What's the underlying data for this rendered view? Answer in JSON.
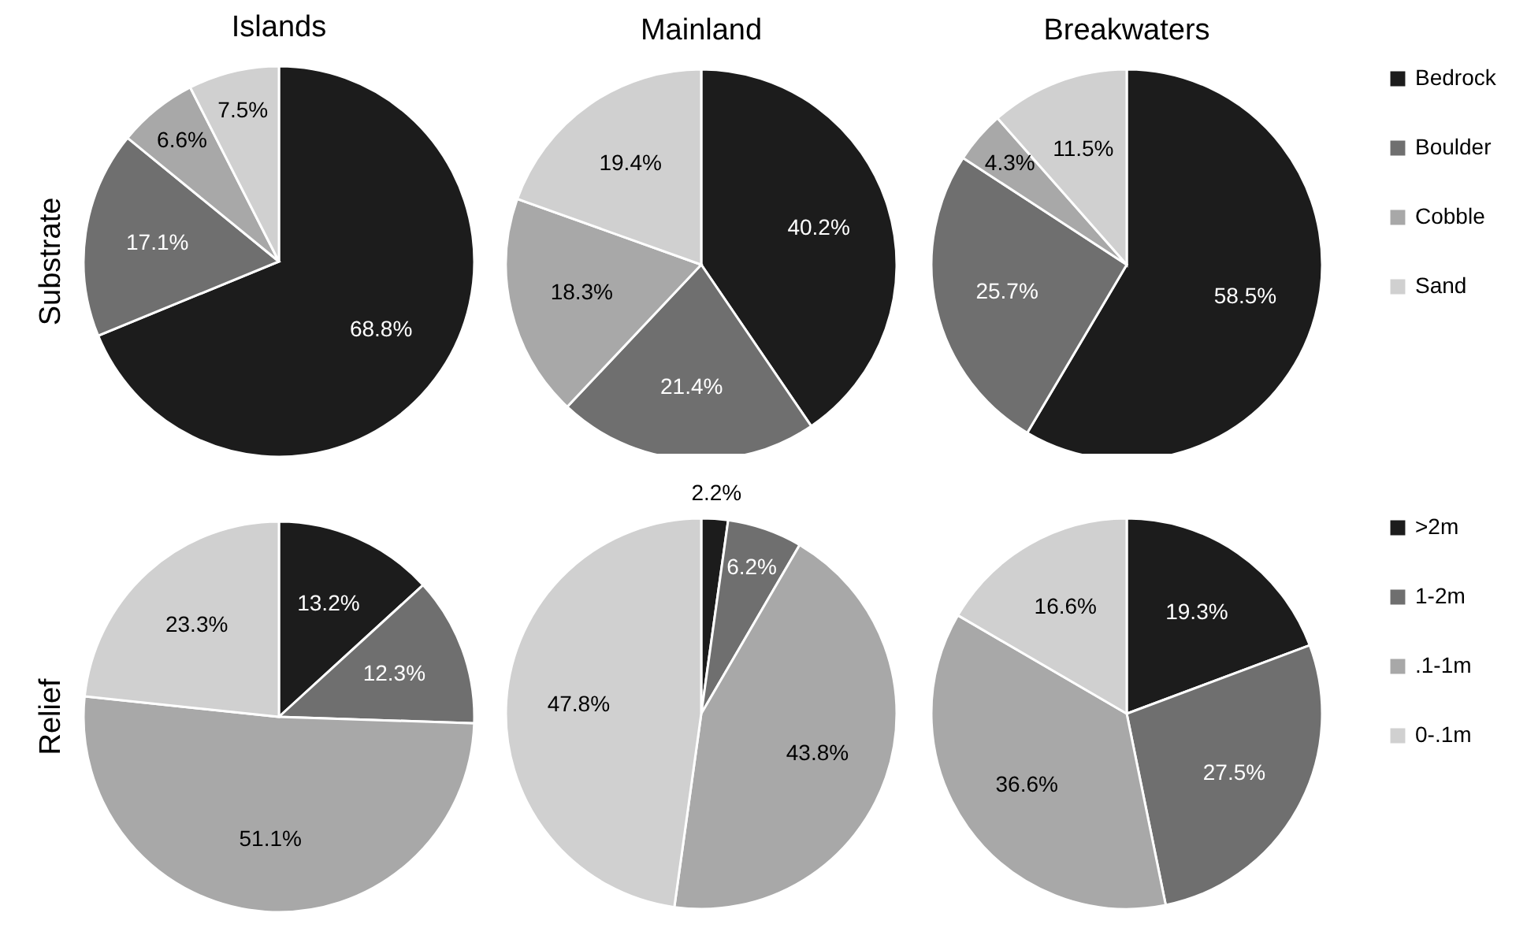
{
  "chart_data": [
    {
      "type": "pie",
      "title": "Islands",
      "ylabel": "Substrate",
      "categories": [
        null,
        null,
        null,
        null
      ],
      "values": [
        68.8,
        17.1,
        6.6,
        7.5
      ],
      "value_labels": [
        "68.8%",
        "17.1%",
        "6.6%",
        "7.5%"
      ],
      "colors": [
        "#1c1c1c",
        "#6f6f6f",
        "#a8a8a8",
        "#d0d0d0"
      ]
    },
    {
      "type": "pie",
      "title": "Mainland",
      "categories": [
        null,
        null,
        null,
        null
      ],
      "values": [
        40.2,
        21.4,
        18.3,
        19.4
      ],
      "value_labels": [
        "40.2%",
        "21.4%",
        "18.3%",
        "19.4%"
      ],
      "colors": [
        "#1c1c1c",
        "#6f6f6f",
        "#a8a8a8",
        "#d0d0d0"
      ]
    },
    {
      "type": "pie",
      "title": "Breakwaters",
      "categories": [
        "Bedrock",
        "Boulder",
        "Cobble",
        "Sand"
      ],
      "values": [
        58.5,
        25.7,
        4.3,
        11.5
      ],
      "value_labels": [
        "58.5%",
        "25.7%",
        "4.3%",
        "11.5%"
      ],
      "colors": [
        "#1c1c1c",
        "#6f6f6f",
        "#a8a8a8",
        "#d0d0d0"
      ],
      "legend": "right"
    },
    {
      "type": "pie",
      "ylabel": "Relief",
      "categories": [
        null,
        null,
        null,
        null
      ],
      "values": [
        13.2,
        12.3,
        51.1,
        23.3
      ],
      "value_labels": [
        "13.2%",
        "12.3%",
        "51.1%",
        "23.3%"
      ],
      "colors": [
        "#1c1c1c",
        "#6f6f6f",
        "#a8a8a8",
        "#d0d0d0"
      ]
    },
    {
      "type": "pie",
      "categories": [
        null,
        null,
        null,
        null
      ],
      "values": [
        2.2,
        6.2,
        43.8,
        47.8
      ],
      "value_labels": [
        "2.2%",
        "6.2%",
        "43.8%",
        "47.8%"
      ],
      "colors": [
        "#1c1c1c",
        "#6f6f6f",
        "#a8a8a8",
        "#d0d0d0"
      ]
    },
    {
      "type": "pie",
      "categories": [
        ">2m",
        "1-2m",
        ".1-1m",
        "0-.1m"
      ],
      "values": [
        19.3,
        27.5,
        36.6,
        16.6
      ],
      "value_labels": [
        "19.3%",
        "27.5%",
        "36.6%",
        "16.6%"
      ],
      "colors": [
        "#1c1c1c",
        "#6f6f6f",
        "#a8a8a8",
        "#d0d0d0"
      ],
      "legend": "right"
    }
  ]
}
